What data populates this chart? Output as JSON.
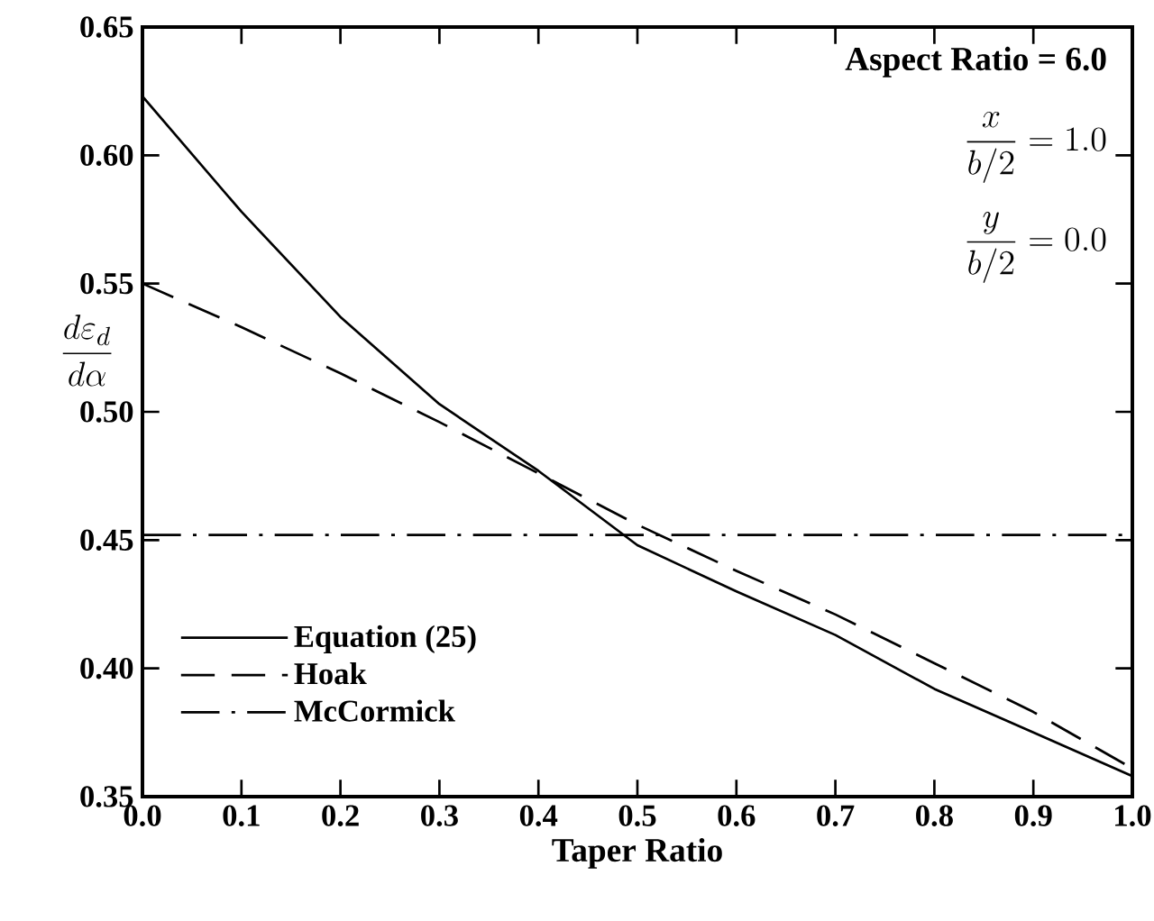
{
  "chart_data": {
    "type": "line",
    "xlabel": "Taper Ratio",
    "ylabel": "\\frac{d\\varepsilon_d}{d\\alpha}",
    "x": [
      0,
      0.1,
      0.2,
      0.3,
      0.4,
      0.5,
      0.6,
      0.7,
      0.8,
      0.9,
      1.0
    ],
    "series": [
      {
        "name": "Equation (25)",
        "color": "#000000",
        "line_style": "solid",
        "values": [
          0.623,
          0.578,
          0.537,
          0.503,
          0.477,
          0.448,
          0.43,
          0.413,
          0.392,
          0.375,
          0.358
        ]
      },
      {
        "name": "Hoak",
        "color": "#000000",
        "line_style": "dashed",
        "values": [
          0.55,
          0.533,
          0.515,
          0.496,
          0.476,
          0.456,
          0.438,
          0.421,
          0.402,
          0.383,
          0.361
        ]
      },
      {
        "name": "McCormick",
        "color": "#000000",
        "line_style": "dashdot",
        "values": [
          0.452,
          0.452,
          0.452,
          0.452,
          0.452,
          0.452,
          0.452,
          0.452,
          0.452,
          0.452,
          0.452
        ]
      }
    ],
    "annotations": [
      "Aspect Ratio = 6.0",
      "\\frac{x}{b/2} = 1.0",
      "\\frac{y}{b/2} = 0.0"
    ],
    "xlim": [
      0,
      1
    ],
    "ylim": [
      0.35,
      0.65
    ],
    "xticks": [
      {
        "value": 0,
        "label": "0.0"
      },
      0.1,
      0.2,
      0.3,
      0.4,
      0.5,
      0.6,
      0.7,
      0.8,
      0.9,
      {
        "value": 1,
        "label": "1.0"
      }
    ],
    "yticks": [
      0.35,
      {
        "value": 0.4,
        "label": "0.40"
      },
      0.45,
      {
        "value": 0.5,
        "label": "0.50"
      },
      0.55,
      {
        "value": 0.6,
        "label": "0.60"
      },
      0.65
    ],
    "legend": "bottom left",
    "grid": false,
    "marker": "none"
  }
}
